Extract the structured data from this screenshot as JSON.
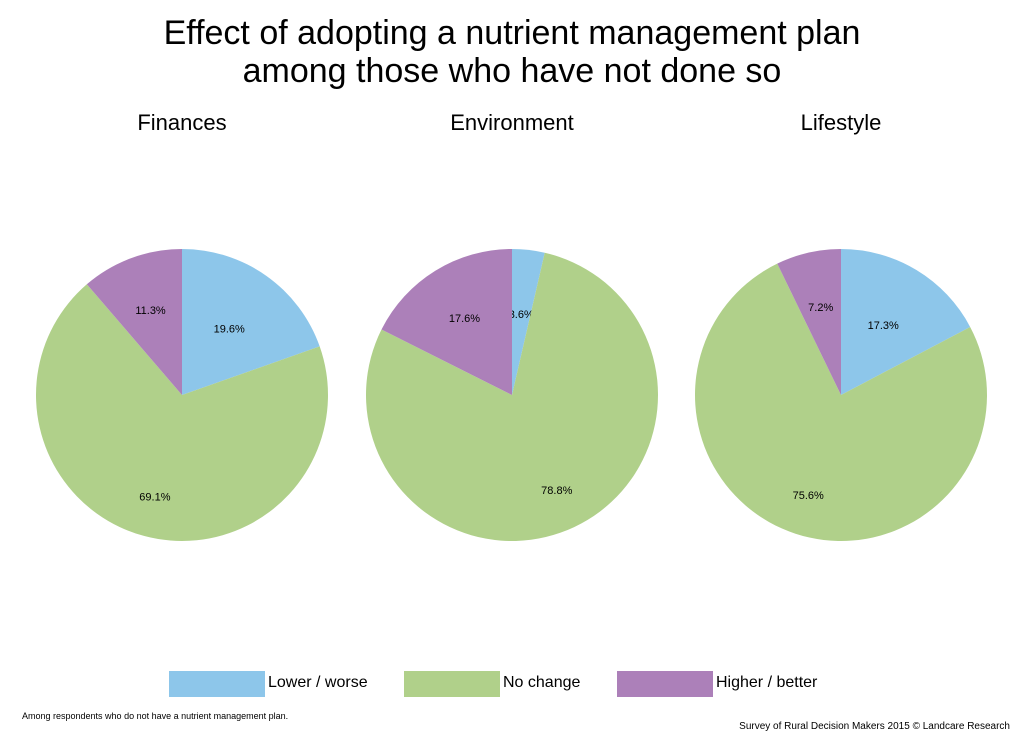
{
  "title_lines": [
    "Effect of adopting a nutrient management plan",
    "among those who have not done so"
  ],
  "legend": {
    "items": [
      {
        "label": "Lower / worse",
        "color": "#8dc6ea"
      },
      {
        "label": "No change",
        "color": "#b0d08a"
      },
      {
        "label": "Higher / better",
        "color": "#ac80b9"
      }
    ]
  },
  "footnote": "Among respondents who do not have a nutrient management plan.",
  "credit": "Survey of Rural Decision Makers 2015 © Landcare Research",
  "chart_data": [
    {
      "type": "pie",
      "title": "Finances",
      "categories": [
        "Lower / worse",
        "No change",
        "Higher / better"
      ],
      "values": [
        19.6,
        69.1,
        11.3
      ],
      "labels": [
        "19.6%",
        "69.1%",
        "11.3%"
      ],
      "colors": [
        "#8dc6ea",
        "#b0d08a",
        "#ac80b9"
      ],
      "start": "12 o'clock",
      "direction": "clockwise"
    },
    {
      "type": "pie",
      "title": "Environment",
      "categories": [
        "Lower / worse",
        "No change",
        "Higher / better"
      ],
      "values": [
        3.6,
        78.8,
        17.6
      ],
      "labels": [
        "3.6%",
        "78.8%",
        "17.6%"
      ],
      "colors": [
        "#8dc6ea",
        "#b0d08a",
        "#ac80b9"
      ],
      "start": "12 o'clock",
      "direction": "clockwise"
    },
    {
      "type": "pie",
      "title": "Lifestyle",
      "categories": [
        "Lower / worse",
        "No change",
        "Higher / better"
      ],
      "values": [
        17.3,
        75.6,
        7.2
      ],
      "labels": [
        "17.3%",
        "75.6%",
        "7.2%"
      ],
      "colors": [
        "#8dc6ea",
        "#b0d08a",
        "#ac80b9"
      ],
      "start": "12 o'clock",
      "direction": "clockwise"
    }
  ]
}
